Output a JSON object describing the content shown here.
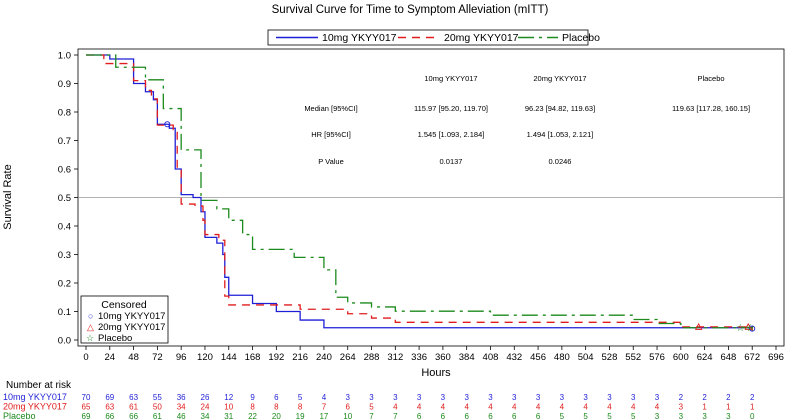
{
  "chart_data": {
    "type": "line",
    "title": "Survival Curve for Time to Symptom Alleviation (mITT)",
    "xlabel": "Hours",
    "ylabel": "Survival Rate",
    "xlim": [
      0,
      696
    ],
    "ylim": [
      0,
      1.0
    ],
    "x_ticks": [
      0,
      24,
      48,
      72,
      96,
      120,
      144,
      168,
      192,
      216,
      240,
      264,
      288,
      312,
      336,
      360,
      384,
      408,
      432,
      456,
      480,
      504,
      528,
      552,
      576,
      600,
      624,
      648,
      672,
      696
    ],
    "y_ticks": [
      "0.0",
      "0.1",
      "0.2",
      "0.3",
      "0.4",
      "0.5",
      "0.6",
      "0.7",
      "0.8",
      "0.9",
      "1.0"
    ],
    "y_tick_values": [
      0,
      0.1,
      0.2,
      0.3,
      0.4,
      0.5,
      0.6,
      0.7,
      0.8,
      0.9,
      1.0
    ],
    "reference_line": 0.5,
    "legend": {
      "position": "top",
      "entries": [
        "10mg YKYY017",
        "20mg YKYY017",
        "Placebo"
      ]
    },
    "censor_legend": {
      "title": "Censored",
      "entries": [
        "10mg YKYY017",
        "20mg YKYY017",
        "Placebo"
      ],
      "symbols": [
        "○",
        "△",
        "☆"
      ]
    },
    "series": [
      {
        "name": "10mg YKYY017",
        "color": "#1f1fd6",
        "dash": "solid",
        "points": [
          [
            0,
            1.0
          ],
          [
            24,
            1.0
          ],
          [
            24,
            0.986
          ],
          [
            48,
            0.986
          ],
          [
            48,
            0.9
          ],
          [
            60,
            0.9
          ],
          [
            60,
            0.871
          ],
          [
            68,
            0.871
          ],
          [
            68,
            0.843
          ],
          [
            72,
            0.843
          ],
          [
            72,
            0.757
          ],
          [
            84,
            0.757
          ],
          [
            84,
            0.743
          ],
          [
            90,
            0.743
          ],
          [
            90,
            0.6
          ],
          [
            96,
            0.6
          ],
          [
            96,
            0.51
          ],
          [
            108,
            0.51
          ],
          [
            108,
            0.5
          ],
          [
            116,
            0.5
          ],
          [
            116,
            0.45
          ],
          [
            120,
            0.45
          ],
          [
            120,
            0.36
          ],
          [
            132,
            0.36
          ],
          [
            132,
            0.34
          ],
          [
            138,
            0.34
          ],
          [
            138,
            0.3
          ],
          [
            140,
            0.3
          ],
          [
            140,
            0.22
          ],
          [
            144,
            0.22
          ],
          [
            144,
            0.157
          ],
          [
            168,
            0.157
          ],
          [
            168,
            0.128
          ],
          [
            192,
            0.128
          ],
          [
            192,
            0.1
          ],
          [
            216,
            0.1
          ],
          [
            216,
            0.07
          ],
          [
            240,
            0.07
          ],
          [
            240,
            0.043
          ],
          [
            300,
            0.043
          ],
          [
            300,
            0.043
          ],
          [
            672,
            0.043
          ],
          [
            672,
            0.04
          ]
        ]
      },
      {
        "name": "20mg YKYY017",
        "color": "#e01c1c",
        "dash": "8,6",
        "points": [
          [
            0,
            1.0
          ],
          [
            18,
            1.0
          ],
          [
            18,
            0.97
          ],
          [
            48,
            0.97
          ],
          [
            48,
            0.91
          ],
          [
            60,
            0.91
          ],
          [
            60,
            0.876
          ],
          [
            66,
            0.876
          ],
          [
            66,
            0.846
          ],
          [
            72,
            0.846
          ],
          [
            72,
            0.754
          ],
          [
            88,
            0.754
          ],
          [
            88,
            0.738
          ],
          [
            92,
            0.738
          ],
          [
            92,
            0.6
          ],
          [
            96,
            0.6
          ],
          [
            96,
            0.477
          ],
          [
            110,
            0.477
          ],
          [
            110,
            0.47
          ],
          [
            118,
            0.47
          ],
          [
            118,
            0.42
          ],
          [
            120,
            0.42
          ],
          [
            120,
            0.37
          ],
          [
            134,
            0.37
          ],
          [
            134,
            0.35
          ],
          [
            140,
            0.35
          ],
          [
            140,
            0.154
          ],
          [
            144,
            0.154
          ],
          [
            144,
            0.123
          ],
          [
            216,
            0.123
          ],
          [
            216,
            0.108
          ],
          [
            264,
            0.108
          ],
          [
            264,
            0.092
          ],
          [
            288,
            0.092
          ],
          [
            288,
            0.077
          ],
          [
            312,
            0.077
          ],
          [
            312,
            0.062
          ],
          [
            600,
            0.062
          ],
          [
            600,
            0.046
          ],
          [
            672,
            0.046
          ],
          [
            672,
            0.03
          ]
        ]
      },
      {
        "name": "Placebo",
        "color": "#1c8a1c",
        "dash": "16,5,3,5",
        "points": [
          [
            0,
            1.0
          ],
          [
            30,
            1.0
          ],
          [
            30,
            0.957
          ],
          [
            60,
            0.957
          ],
          [
            60,
            0.913
          ],
          [
            78,
            0.913
          ],
          [
            78,
            0.812
          ],
          [
            96,
            0.812
          ],
          [
            96,
            0.667
          ],
          [
            116,
            0.667
          ],
          [
            116,
            0.49
          ],
          [
            132,
            0.49
          ],
          [
            132,
            0.46
          ],
          [
            144,
            0.46
          ],
          [
            144,
            0.42
          ],
          [
            158,
            0.42
          ],
          [
            158,
            0.37
          ],
          [
            168,
            0.37
          ],
          [
            168,
            0.318
          ],
          [
            210,
            0.318
          ],
          [
            210,
            0.29
          ],
          [
            240,
            0.29
          ],
          [
            240,
            0.246
          ],
          [
            252,
            0.246
          ],
          [
            252,
            0.15
          ],
          [
            264,
            0.15
          ],
          [
            264,
            0.13
          ],
          [
            288,
            0.13
          ],
          [
            288,
            0.116
          ],
          [
            312,
            0.116
          ],
          [
            312,
            0.101
          ],
          [
            408,
            0.101
          ],
          [
            408,
            0.087
          ],
          [
            552,
            0.087
          ],
          [
            552,
            0.072
          ],
          [
            576,
            0.072
          ],
          [
            576,
            0.058
          ],
          [
            600,
            0.058
          ],
          [
            600,
            0.043
          ],
          [
            672,
            0.043
          ],
          [
            672,
            0.04
          ]
        ]
      }
    ],
    "stats_table": {
      "headers": [
        "10mg YKYY017",
        "20mg YKYY017",
        "Placebo"
      ],
      "rows": [
        {
          "label": "Median [95%CI]",
          "values": [
            "115.97 [95.20, 119.70]",
            "96.23 [94.82, 119.63]",
            "119.63 [117.28, 160.15]"
          ]
        },
        {
          "label": "HR [95%CI]",
          "values": [
            "1.545 [1.093, 2.184]",
            "1.494 [1.053, 2.121]",
            ""
          ]
        },
        {
          "label": "P Value",
          "values": [
            "0.0137",
            "0.0246",
            ""
          ]
        }
      ]
    },
    "risk_table": {
      "title": "Number at risk",
      "times": [
        0,
        24,
        48,
        72,
        96,
        120,
        144,
        168,
        192,
        216,
        240,
        264,
        288,
        312,
        336,
        360,
        384,
        408,
        432,
        456,
        480,
        504,
        528,
        552,
        576,
        600,
        624,
        648,
        672
      ],
      "groups": [
        {
          "name": "10mg YKYY017",
          "color": "#1f1fd6",
          "counts": [
            "70",
            "69",
            "63",
            "55",
            "36",
            "26",
            "12",
            "9",
            "6",
            "5",
            "4",
            "3",
            "3",
            "3",
            "3",
            "3",
            "3",
            "3",
            "3",
            "3",
            "3",
            "3",
            "3",
            "3",
            "3",
            "2",
            "2",
            "2",
            "2"
          ]
        },
        {
          "name": "20mg YKYY017",
          "color": "#e01c1c",
          "counts": [
            "65",
            "63",
            "61",
            "50",
            "34",
            "24",
            "10",
            "8",
            "8",
            "8",
            "7",
            "6",
            "5",
            "4",
            "4",
            "4",
            "4",
            "4",
            "4",
            "4",
            "4",
            "4",
            "4",
            "4",
            "4",
            "3",
            "1",
            "1",
            "1"
          ]
        },
        {
          "name": "Placebo",
          "color": "#1c8a1c",
          "counts": [
            "69",
            "66",
            "66",
            "61",
            "46",
            "34",
            "31",
            "22",
            "20",
            "19",
            "17",
            "10",
            "7",
            "7",
            "6",
            "6",
            "6",
            "6",
            "6",
            "6",
            "5",
            "5",
            "5",
            "5",
            "3",
            "3",
            "3",
            "3",
            "0"
          ]
        }
      ]
    }
  }
}
